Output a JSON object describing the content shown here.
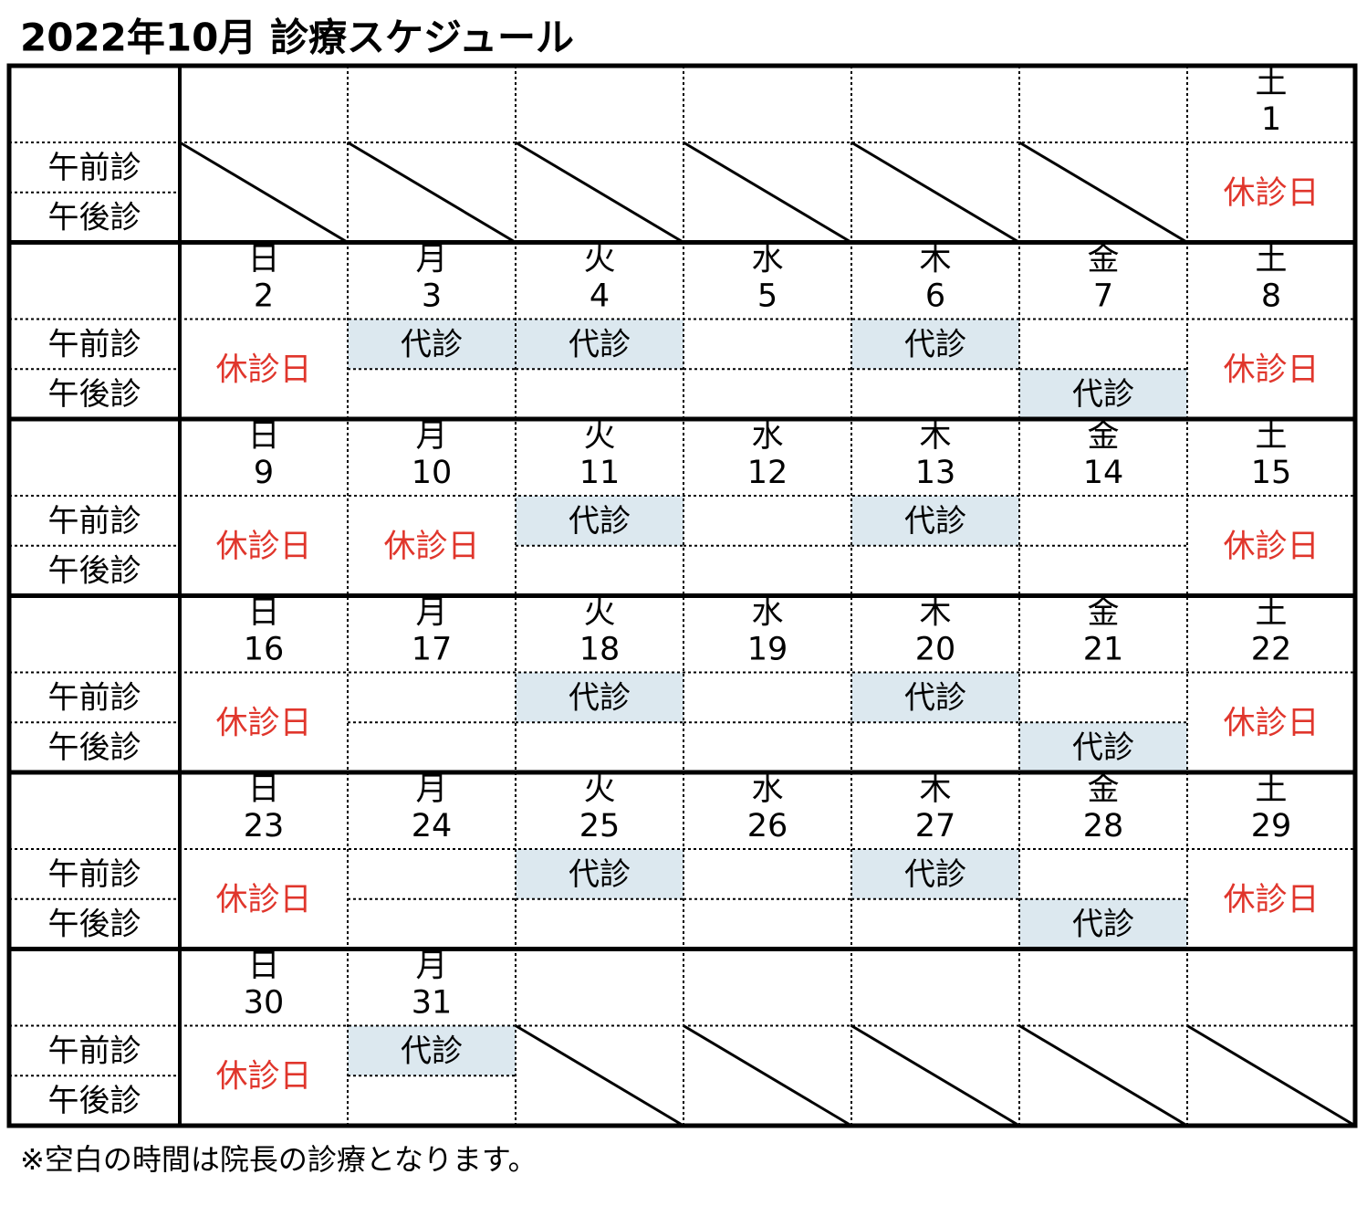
{
  "title": "2022年10月 診療スケジュール",
  "row_labels": [
    "午前診",
    "午後診"
  ],
  "weeks": [
    {
      "days": [
        null,
        null,
        null,
        null,
        null,
        null,
        {
          "weekday": "土",
          "date": 1,
          "color": "#3b72b8",
          "closed": "休診日"
        }
      ]
    },
    {
      "days": [
        {
          "weekday": "日",
          "date": 2,
          "color": "#e0362c",
          "closed": "休診日"
        },
        {
          "weekday": "月",
          "date": 3,
          "am": "代診"
        },
        {
          "weekday": "火",
          "date": 4,
          "am": "代診"
        },
        {
          "weekday": "水",
          "date": 5
        },
        {
          "weekday": "木",
          "date": 6,
          "am": "代診"
        },
        {
          "weekday": "金",
          "date": 7,
          "pm": "代診"
        },
        {
          "weekday": "土",
          "date": 8,
          "color": "#3b72b8",
          "closed": "休診日"
        }
      ]
    },
    {
      "days": [
        {
          "weekday": "日",
          "date": 9,
          "color": "#e0362c",
          "closed": "休診日"
        },
        {
          "weekday": "月",
          "date": 10,
          "color": "#e0362c",
          "closed": "休診日"
        },
        {
          "weekday": "火",
          "date": 11,
          "am": "代診"
        },
        {
          "weekday": "水",
          "date": 12
        },
        {
          "weekday": "木",
          "date": 13,
          "am": "代診"
        },
        {
          "weekday": "金",
          "date": 14
        },
        {
          "weekday": "土",
          "date": 15,
          "color": "#3b72b8",
          "closed": "休診日"
        }
      ]
    },
    {
      "days": [
        {
          "weekday": "日",
          "date": 16,
          "color": "#e0362c",
          "closed": "休診日"
        },
        {
          "weekday": "月",
          "date": 17
        },
        {
          "weekday": "火",
          "date": 18,
          "am": "代診"
        },
        {
          "weekday": "水",
          "date": 19
        },
        {
          "weekday": "木",
          "date": 20,
          "am": "代診"
        },
        {
          "weekday": "金",
          "date": 21,
          "pm": "代診"
        },
        {
          "weekday": "土",
          "date": 22,
          "color": "#3b72b8",
          "closed": "休診日"
        }
      ]
    },
    {
      "days": [
        {
          "weekday": "日",
          "date": 23,
          "color": "#e0362c",
          "closed": "休診日"
        },
        {
          "weekday": "月",
          "date": 24
        },
        {
          "weekday": "火",
          "date": 25,
          "am": "代診"
        },
        {
          "weekday": "水",
          "date": 26
        },
        {
          "weekday": "木",
          "date": 27,
          "am": "代診"
        },
        {
          "weekday": "金",
          "date": 28,
          "pm": "代診"
        },
        {
          "weekday": "土",
          "date": 29,
          "color": "#3b72b8",
          "closed": "休診日"
        }
      ]
    },
    {
      "days": [
        {
          "weekday": "日",
          "date": 30,
          "color": "#e0362c",
          "closed": "休診日"
        },
        {
          "weekday": "月",
          "date": 31,
          "am": "代診"
        },
        null,
        null,
        null,
        null,
        null
      ]
    }
  ],
  "footnote": "※空白の時間は院長の診療となります。"
}
